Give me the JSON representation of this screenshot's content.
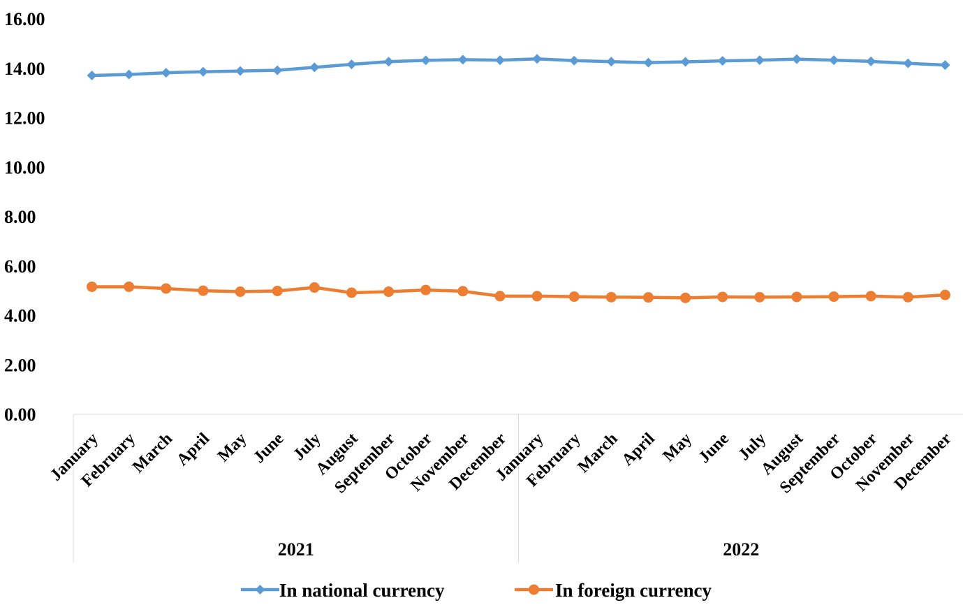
{
  "chart_data": {
    "type": "line",
    "title": "",
    "xlabel": "",
    "ylabel": "",
    "ylim": [
      0,
      16
    ],
    "y_ticks": [
      "0.00",
      "2.00",
      "4.00",
      "6.00",
      "8.00",
      "10.00",
      "12.00",
      "14.00",
      "16.00"
    ],
    "y_tick_values": [
      0,
      2,
      4,
      6,
      8,
      10,
      12,
      14,
      16
    ],
    "grid": false,
    "legend_position": "bottom",
    "groups": [
      {
        "label": "2021",
        "categories": [
          "January",
          "February",
          "March",
          "April",
          "May",
          "June",
          "July",
          "August",
          "September",
          "October",
          "November",
          "December"
        ]
      },
      {
        "label": "2022",
        "categories": [
          "January",
          "February",
          "March",
          "April",
          "May",
          "June",
          "July",
          "August",
          "September",
          "October",
          "November",
          "December"
        ]
      }
    ],
    "series": [
      {
        "name": "In national currency",
        "color": "#5B9BD5",
        "marker": "diamond",
        "values": [
          13.71,
          13.75,
          13.82,
          13.86,
          13.89,
          13.92,
          14.04,
          14.16,
          14.27,
          14.32,
          14.35,
          14.33,
          14.38,
          14.31,
          14.27,
          14.23,
          14.26,
          14.3,
          14.33,
          14.37,
          14.33,
          14.28,
          14.2,
          14.13
        ]
      },
      {
        "name": "In foreign currency",
        "color": "#ED7D31",
        "marker": "circle",
        "values": [
          5.16,
          5.16,
          5.09,
          5.0,
          4.96,
          4.99,
          5.13,
          4.92,
          4.96,
          5.03,
          4.98,
          4.78,
          4.78,
          4.76,
          4.74,
          4.73,
          4.71,
          4.75,
          4.74,
          4.75,
          4.76,
          4.78,
          4.74,
          4.83
        ]
      }
    ]
  }
}
